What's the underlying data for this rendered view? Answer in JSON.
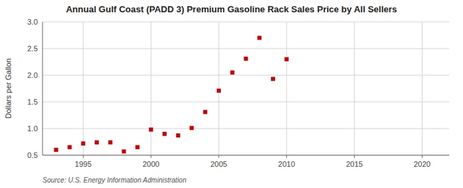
{
  "chart_data": {
    "type": "scatter",
    "title": "Annual Gulf Coast (PADD 3) Premium Gasoline Rack Sales Price by All Sellers",
    "ylabel": "Dollars per Gallon",
    "source": "Source: U.S. Energy Information Administration",
    "x": [
      1993,
      1994,
      1995,
      1996,
      1997,
      1998,
      1999,
      2000,
      2001,
      2002,
      2003,
      2004,
      2005,
      2006,
      2007,
      2008,
      2009,
      2010
    ],
    "values": [
      0.6,
      0.65,
      0.72,
      0.74,
      0.74,
      0.57,
      0.65,
      0.98,
      0.9,
      0.87,
      1.01,
      1.31,
      1.71,
      2.05,
      2.31,
      2.7,
      1.93,
      2.3
    ],
    "color": "#cc0000",
    "marker": "square",
    "xlim": [
      1992,
      2022
    ],
    "ylim": [
      0.5,
      3.0
    ],
    "xticks": [
      1995,
      2000,
      2005,
      2010,
      2015,
      2020
    ],
    "yticks": [
      0.5,
      {
        "value": 1.0,
        "label": "1.0"
      },
      1.5,
      {
        "value": 2.0,
        "label": "2.0"
      },
      2.5,
      {
        "value": 3.0,
        "label": "3.0"
      }
    ],
    "grid": true
  }
}
